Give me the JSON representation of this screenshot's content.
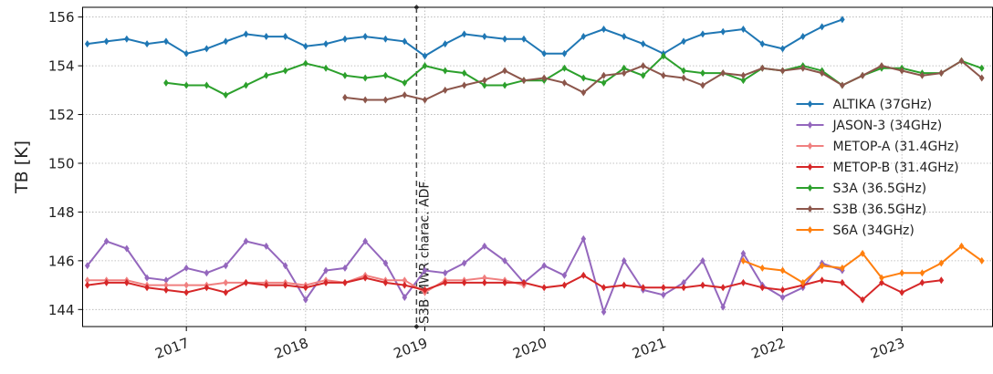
{
  "chart_data": {
    "type": "line",
    "y_label": "TB [K]",
    "xlim": [
      2016.13,
      2023.76
    ],
    "ylim": [
      143.3,
      156.4
    ],
    "xticks": [
      2017,
      2018,
      2019,
      2020,
      2021,
      2022,
      2023
    ],
    "yticks": [
      144,
      146,
      148,
      150,
      152,
      154,
      156
    ],
    "grid": true,
    "legend": "center right",
    "annotations": [
      {
        "x": 2018.93,
        "text": "S3B MWR charac. ADF"
      }
    ],
    "series": [
      {
        "name": "ALTIKA (37GHz)",
        "color": "#1f77b4",
        "x": [
          2016.17,
          2016.33,
          2016.5,
          2016.67,
          2016.83,
          2017,
          2017.17,
          2017.33,
          2017.5,
          2017.67,
          2017.83,
          2018,
          2018.17,
          2018.33,
          2018.5,
          2018.67,
          2018.83,
          2019,
          2019.17,
          2019.33,
          2019.5,
          2019.67,
          2019.83,
          2020,
          2020.17,
          2020.33,
          2020.5,
          2020.67,
          2020.83,
          2021,
          2021.17,
          2021.33,
          2021.5,
          2021.67,
          2021.83,
          2022,
          2022.17,
          2022.33,
          2022.5
        ],
        "values": [
          154.9,
          155.0,
          155.1,
          154.9,
          155.0,
          154.5,
          154.7,
          155.0,
          155.3,
          155.2,
          155.2,
          154.8,
          154.9,
          155.1,
          155.2,
          155.1,
          155.0,
          154.4,
          154.9,
          155.3,
          155.2,
          155.1,
          155.1,
          154.5,
          154.5,
          155.2,
          155.5,
          155.2,
          154.9,
          154.5,
          155.0,
          155.3,
          155.4,
          155.5,
          154.9,
          154.7,
          155.2,
          155.6,
          155.9
        ]
      },
      {
        "name": "JASON-3 (34GHz)",
        "color": "#9467bd",
        "x": [
          2016.17,
          2016.33,
          2016.5,
          2016.67,
          2016.83,
          2017,
          2017.17,
          2017.33,
          2017.5,
          2017.67,
          2017.83,
          2018,
          2018.17,
          2018.33,
          2018.5,
          2018.67,
          2018.83,
          2019,
          2019.17,
          2019.33,
          2019.5,
          2019.67,
          2019.83,
          2020,
          2020.17,
          2020.33,
          2020.5,
          2020.67,
          2020.83,
          2021,
          2021.17,
          2021.33,
          2021.5,
          2021.67,
          2021.83,
          2022,
          2022.17,
          2022.33,
          2022.5
        ],
        "values": [
          145.8,
          146.8,
          146.5,
          145.3,
          145.2,
          145.7,
          145.5,
          145.8,
          146.8,
          146.6,
          145.8,
          144.4,
          145.6,
          145.7,
          146.8,
          145.9,
          144.5,
          145.6,
          145.5,
          145.9,
          146.6,
          146.0,
          145.1,
          145.8,
          145.4,
          146.9,
          143.9,
          146.0,
          144.8,
          144.6,
          145.1,
          146.0,
          144.1,
          146.3,
          145.0,
          144.5,
          144.9,
          145.9,
          145.6
        ]
      },
      {
        "name": "METOP-A (31.4GHz)",
        "color": "#f08080",
        "x": [
          2016.17,
          2016.33,
          2016.5,
          2016.67,
          2016.83,
          2017,
          2017.17,
          2017.33,
          2017.5,
          2017.67,
          2017.83,
          2018,
          2018.17,
          2018.33,
          2018.5,
          2018.67,
          2018.83,
          2019,
          2019.17,
          2019.33,
          2019.5,
          2019.67,
          2019.83
        ],
        "values": [
          145.2,
          145.2,
          145.2,
          145.0,
          145.0,
          145.0,
          145.0,
          145.1,
          145.1,
          145.1,
          145.1,
          145.0,
          145.2,
          145.1,
          145.4,
          145.2,
          145.2,
          144.7,
          145.2,
          145.2,
          145.3,
          145.2,
          145.0
        ]
      },
      {
        "name": "METOP-B (31.4GHz)",
        "color": "#d62728",
        "x": [
          2016.17,
          2016.33,
          2016.5,
          2016.67,
          2016.83,
          2017,
          2017.17,
          2017.33,
          2017.5,
          2017.67,
          2017.83,
          2018,
          2018.17,
          2018.33,
          2018.5,
          2018.67,
          2018.83,
          2019,
          2019.17,
          2019.33,
          2019.5,
          2019.67,
          2019.83,
          2020,
          2020.17,
          2020.33,
          2020.5,
          2020.67,
          2020.83,
          2021,
          2021.17,
          2021.33,
          2021.5,
          2021.67,
          2021.83,
          2022,
          2022.17,
          2022.33,
          2022.5,
          2022.67,
          2022.83,
          2023,
          2023.17,
          2023.33
        ],
        "values": [
          145.0,
          145.1,
          145.1,
          144.9,
          144.8,
          144.7,
          144.9,
          144.7,
          145.1,
          145.0,
          145.0,
          144.9,
          145.1,
          145.1,
          145.3,
          145.1,
          145.0,
          144.8,
          145.1,
          145.1,
          145.1,
          145.1,
          145.1,
          144.9,
          145.0,
          145.4,
          144.9,
          145.0,
          144.9,
          144.9,
          144.9,
          145.0,
          144.9,
          145.1,
          144.9,
          144.8,
          145.0,
          145.2,
          145.1,
          144.4,
          145.1,
          144.7,
          145.1,
          145.2
        ]
      },
      {
        "name": "S3A (36.5GHz)",
        "color": "#2ca02c",
        "x": [
          2016.83,
          2017,
          2017.17,
          2017.33,
          2017.5,
          2017.67,
          2017.83,
          2018,
          2018.17,
          2018.33,
          2018.5,
          2018.67,
          2018.83,
          2019,
          2019.17,
          2019.33,
          2019.5,
          2019.67,
          2019.83,
          2020,
          2020.17,
          2020.33,
          2020.5,
          2020.67,
          2020.83,
          2021,
          2021.17,
          2021.33,
          2021.5,
          2021.67,
          2021.83,
          2022,
          2022.17,
          2022.33,
          2022.5,
          2022.67,
          2022.83,
          2023,
          2023.17,
          2023.33,
          2023.5,
          2023.67
        ],
        "values": [
          153.3,
          153.2,
          153.2,
          152.8,
          153.2,
          153.6,
          153.8,
          154.1,
          153.9,
          153.6,
          153.5,
          153.6,
          153.3,
          154.0,
          153.8,
          153.7,
          153.2,
          153.2,
          153.4,
          153.4,
          153.9,
          153.5,
          153.3,
          153.9,
          153.6,
          154.4,
          153.8,
          153.7,
          153.7,
          153.4,
          153.9,
          153.8,
          154.0,
          153.8,
          153.2,
          153.6,
          153.9,
          153.9,
          153.7,
          153.7,
          154.2,
          153.9
        ]
      },
      {
        "name": "S3B (36.5GHz)",
        "color": "#8c564b",
        "x": [
          2018.33,
          2018.5,
          2018.67,
          2018.83,
          2019,
          2019.17,
          2019.33,
          2019.5,
          2019.67,
          2019.83,
          2020,
          2020.17,
          2020.33,
          2020.5,
          2020.67,
          2020.83,
          2021,
          2021.17,
          2021.33,
          2021.5,
          2021.67,
          2021.83,
          2022,
          2022.17,
          2022.33,
          2022.5,
          2022.67,
          2022.83,
          2023,
          2023.17,
          2023.33,
          2023.5,
          2023.67
        ],
        "values": [
          152.7,
          152.6,
          152.6,
          152.8,
          152.6,
          153.0,
          153.2,
          153.4,
          153.8,
          153.4,
          153.5,
          153.3,
          152.9,
          153.6,
          153.7,
          154.0,
          153.6,
          153.5,
          153.2,
          153.7,
          153.6,
          153.9,
          153.8,
          153.9,
          153.7,
          153.2,
          153.6,
          154.0,
          153.8,
          153.6,
          153.7,
          154.2,
          153.5
        ]
      },
      {
        "name": "S6A (34GHz)",
        "color": "#ff7f0e",
        "x": [
          2021.67,
          2021.83,
          2022,
          2022.17,
          2022.33,
          2022.5,
          2022.67,
          2022.83,
          2023,
          2023.17,
          2023.33,
          2023.5,
          2023.67
        ],
        "values": [
          146.0,
          145.7,
          145.6,
          145.1,
          145.8,
          145.7,
          146.3,
          145.3,
          145.5,
          145.5,
          145.9,
          146.6,
          146.0
        ]
      }
    ]
  }
}
